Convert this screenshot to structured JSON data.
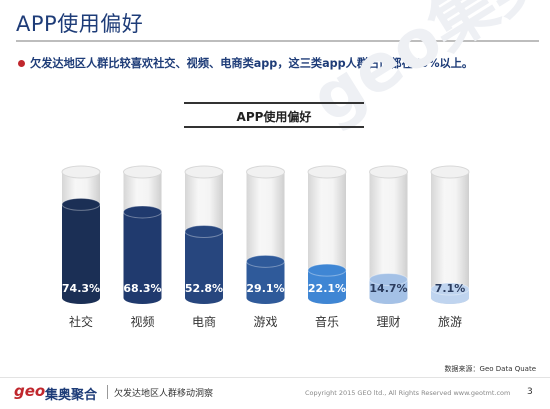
{
  "page": {
    "title": "APP使用偏好",
    "subtitle": "欠发达地区人群比较喜欢社交、视频、电商类app，这三类app人群占比都在50%以上。"
  },
  "watermark": "geo集奥聚合",
  "chart_data": {
    "type": "bar",
    "title": "APP使用偏好",
    "categories": [
      "社交",
      "视频",
      "电商",
      "游戏",
      "音乐",
      "理财",
      "旅游"
    ],
    "values": [
      74.3,
      68.3,
      52.8,
      29.1,
      22.1,
      14.7,
      7.1
    ],
    "value_labels": [
      "74.3%",
      "68.3%",
      "52.8%",
      "29.1%",
      "22.1%",
      "14.7%",
      "7.1%"
    ],
    "ylim": [
      0,
      100
    ],
    "grid": false,
    "legend": "none",
    "colors": [
      "#1b2f55",
      "#203a6e",
      "#27467e",
      "#2f5a9a",
      "#3f86d4",
      "#a4c1e6",
      "#bfd4ef"
    ],
    "label_colors": [
      "#ffffff",
      "#ffffff",
      "#ffffff",
      "#ffffff",
      "#ffffff",
      "#2b3c5e",
      "#2b3c5e"
    ]
  },
  "footer": {
    "source": "数据来源：Geo Data Quate",
    "logo_text": "geo",
    "logo_cn": "集奥聚合",
    "report_name": "欠发达地区人群移动洞察",
    "copyright": "Copyright 2015 GEO ltd., All Rights Reserved    www.geotmt.com",
    "page_number": "3"
  }
}
